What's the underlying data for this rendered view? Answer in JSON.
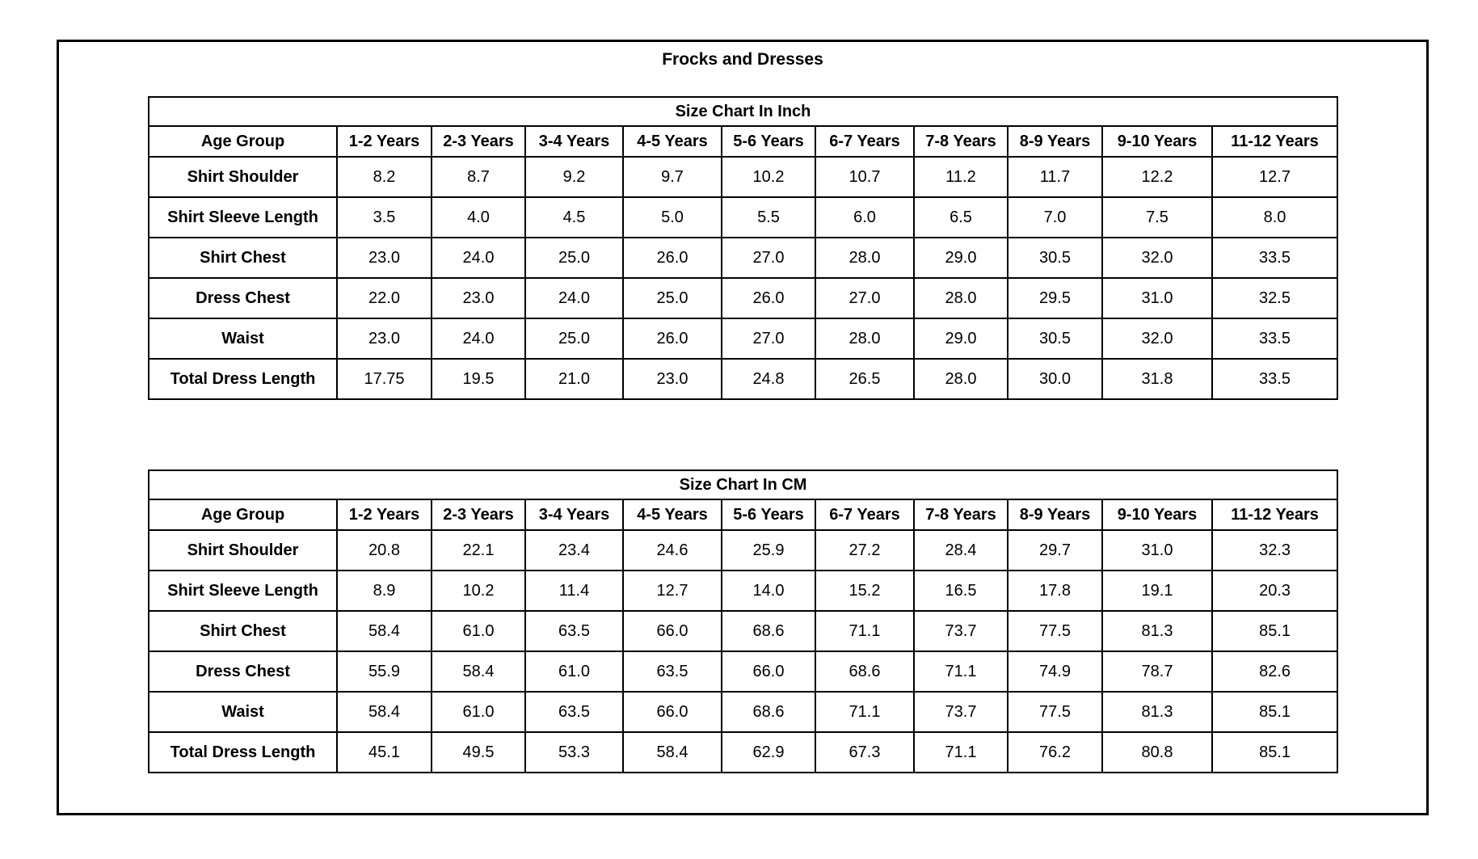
{
  "page": {
    "title": "Frocks and Dresses"
  },
  "columns": [
    "Age Group",
    "1-2 Years",
    "2-3 Years",
    "3-4 Years",
    "4-5 Years",
    "5-6 Years",
    "6-7 Years",
    "7-8 Years",
    "8-9 Years",
    "9-10 Years",
    "11-12 Years"
  ],
  "tables": [
    {
      "id": "inch",
      "title": "Size Chart In Inch",
      "rows": [
        {
          "label": "Shirt Shoulder",
          "values": [
            "8.2",
            "8.7",
            "9.2",
            "9.7",
            "10.2",
            "10.7",
            "11.2",
            "11.7",
            "12.2",
            "12.7"
          ]
        },
        {
          "label": "Shirt Sleeve Length",
          "values": [
            "3.5",
            "4.0",
            "4.5",
            "5.0",
            "5.5",
            "6.0",
            "6.5",
            "7.0",
            "7.5",
            "8.0"
          ]
        },
        {
          "label": "Shirt Chest",
          "values": [
            "23.0",
            "24.0",
            "25.0",
            "26.0",
            "27.0",
            "28.0",
            "29.0",
            "30.5",
            "32.0",
            "33.5"
          ]
        },
        {
          "label": "Dress Chest",
          "values": [
            "22.0",
            "23.0",
            "24.0",
            "25.0",
            "26.0",
            "27.0",
            "28.0",
            "29.5",
            "31.0",
            "32.5"
          ]
        },
        {
          "label": "Waist",
          "values": [
            "23.0",
            "24.0",
            "25.0",
            "26.0",
            "27.0",
            "28.0",
            "29.0",
            "30.5",
            "32.0",
            "33.5"
          ]
        },
        {
          "label": "Total Dress Length",
          "values": [
            "17.75",
            "19.5",
            "21.0",
            "23.0",
            "24.8",
            "26.5",
            "28.0",
            "30.0",
            "31.8",
            "33.5"
          ]
        }
      ]
    },
    {
      "id": "cm",
      "title": "Size Chart In CM",
      "rows": [
        {
          "label": "Shirt Shoulder",
          "values": [
            "20.8",
            "22.1",
            "23.4",
            "24.6",
            "25.9",
            "27.2",
            "28.4",
            "29.7",
            "31.0",
            "32.3"
          ]
        },
        {
          "label": "Shirt Sleeve Length",
          "values": [
            "8.9",
            "10.2",
            "11.4",
            "12.7",
            "14.0",
            "15.2",
            "16.5",
            "17.8",
            "19.1",
            "20.3"
          ]
        },
        {
          "label": "Shirt Chest",
          "values": [
            "58.4",
            "61.0",
            "63.5",
            "66.0",
            "68.6",
            "71.1",
            "73.7",
            "77.5",
            "81.3",
            "85.1"
          ]
        },
        {
          "label": "Dress Chest",
          "values": [
            "55.9",
            "58.4",
            "61.0",
            "63.5",
            "66.0",
            "68.6",
            "71.1",
            "74.9",
            "78.7",
            "82.6"
          ]
        },
        {
          "label": "Waist",
          "values": [
            "58.4",
            "61.0",
            "63.5",
            "66.0",
            "68.6",
            "71.1",
            "73.7",
            "77.5",
            "81.3",
            "85.1"
          ]
        },
        {
          "label": "Total Dress Length",
          "values": [
            "45.1",
            "49.5",
            "53.3",
            "58.4",
            "62.9",
            "67.3",
            "71.1",
            "76.2",
            "80.8",
            "85.1"
          ]
        }
      ]
    }
  ],
  "colors": {
    "text": "#000000",
    "border": "#000000",
    "background": "#ffffff"
  }
}
